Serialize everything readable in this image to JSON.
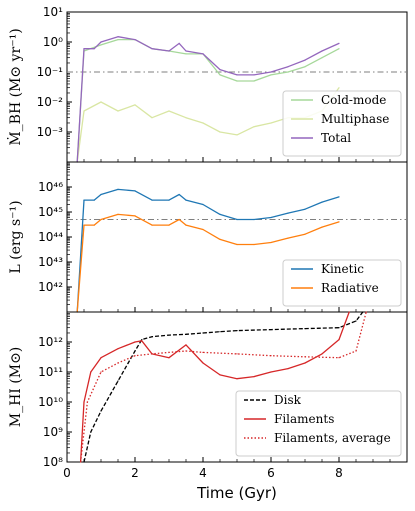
{
  "chart_data": [
    {
      "type": "line",
      "panel": "top",
      "ylabel": "Ṁ_BH (M⊙ yr⁻¹)",
      "yscale": "log",
      "ylim": [
        0.0001,
        10
      ],
      "xlim": [
        0,
        10
      ],
      "y_tick_labels": [
        "10⁻³",
        "10⁻²",
        "10⁻¹",
        "10⁰",
        "10¹"
      ],
      "legend_position": "lower-right",
      "reference_line": {
        "y": 0.1,
        "style": "dash-dot",
        "color": "#7f7f7f"
      },
      "series": [
        {
          "name": "Cold-mode",
          "color": "#a6d89a",
          "x": [
            0.3,
            0.5,
            1,
            1.5,
            2,
            2.5,
            3,
            3.5,
            4,
            4.5,
            5,
            5.5,
            6,
            6.5,
            7,
            7.5,
            8
          ],
          "y": [
            0.0001,
            0.5,
            0.8,
            1.2,
            1.2,
            0.6,
            0.5,
            0.4,
            0.4,
            0.08,
            0.05,
            0.05,
            0.08,
            0.1,
            0.15,
            0.3,
            0.6
          ]
        },
        {
          "name": "Multiphase",
          "color": "#d9e6a3",
          "x": [
            0.3,
            0.5,
            1,
            1.5,
            2,
            2.5,
            3,
            3.5,
            4,
            4.5,
            5,
            5.5,
            6,
            6.5,
            7,
            7.5,
            8
          ],
          "y": [
            0.0001,
            0.005,
            0.01,
            0.005,
            0.008,
            0.003,
            0.005,
            0.003,
            0.002,
            0.001,
            0.0008,
            0.0015,
            0.002,
            0.003,
            0.003,
            0.005,
            0.03
          ]
        },
        {
          "name": "Total",
          "color": "#9467bd",
          "x": [
            0.3,
            0.5,
            0.8,
            1,
            1.5,
            2,
            2.5,
            3,
            3.3,
            3.5,
            4,
            4.5,
            5,
            5.5,
            6,
            6.5,
            7,
            7.5,
            8
          ],
          "y": [
            0.0001,
            0.6,
            0.6,
            1.0,
            1.5,
            1.2,
            0.6,
            0.5,
            0.9,
            0.5,
            0.4,
            0.12,
            0.08,
            0.08,
            0.1,
            0.15,
            0.25,
            0.5,
            0.9
          ]
        }
      ]
    },
    {
      "type": "line",
      "panel": "middle",
      "ylabel": "L (erg s⁻¹)",
      "yscale": "log",
      "ylim": [
        1e+41,
        1e+47
      ],
      "xlim": [
        0,
        10
      ],
      "y_tick_labels": [
        "10⁴²",
        "10⁴³",
        "10⁴⁴",
        "10⁴⁵",
        "10⁴⁶"
      ],
      "legend_position": "lower-right",
      "reference_line": {
        "y": 5e+44,
        "style": "dash-dot",
        "color": "#7f7f7f"
      },
      "series": [
        {
          "name": "Kinetic",
          "color": "#1f77b4",
          "x": [
            0.3,
            0.5,
            0.8,
            1,
            1.5,
            2,
            2.5,
            3,
            3.3,
            3.5,
            4,
            4.5,
            5,
            5.5,
            6,
            6.5,
            7,
            7.5,
            8
          ],
          "y": [
            1e+41,
            3e+45,
            3e+45,
            5e+45,
            8e+45,
            7e+45,
            3e+45,
            3e+45,
            5e+45,
            3e+45,
            2e+45,
            8e+44,
            5e+44,
            5e+44,
            6e+44,
            9e+44,
            1.3e+45,
            2.5e+45,
            4e+45
          ]
        },
        {
          "name": "Radiative",
          "color": "#ff7f0e",
          "x": [
            0.3,
            0.5,
            0.8,
            1,
            1.5,
            2,
            2.5,
            3,
            3.3,
            3.5,
            4,
            4.5,
            5,
            5.5,
            6,
            6.5,
            7,
            7.5,
            8
          ],
          "y": [
            1e+41,
            3e+44,
            3e+44,
            5e+44,
            8e+44,
            7e+44,
            3e+44,
            3e+44,
            5e+44,
            3e+44,
            2e+44,
            8e+43,
            5e+43,
            5e+43,
            6e+43,
            9e+43,
            1.3e+44,
            2.5e+44,
            4e+44
          ]
        }
      ]
    },
    {
      "type": "line",
      "panel": "bottom",
      "ylabel": "M_HI (M⊙)",
      "xlabel": "Time (Gyr)",
      "yscale": "log",
      "ylim": [
        100000000.0,
        10000000000000.0
      ],
      "xlim": [
        0,
        10
      ],
      "x_tick_labels": [
        "0",
        "2",
        "4",
        "6",
        "8"
      ],
      "y_tick_labels": [
        "10⁸",
        "10⁹",
        "10¹⁰",
        "10¹¹",
        "10¹²"
      ],
      "legend_position": "lower-right",
      "series": [
        {
          "name": "Disk",
          "color": "#000000",
          "style": "dashed",
          "x": [
            0.5,
            0.7,
            1,
            1.3,
            1.5,
            1.8,
            2,
            2.2,
            2.5,
            3,
            3.5,
            4,
            4.5,
            5,
            6,
            7,
            8,
            8.5,
            8.7
          ],
          "y": [
            100000000.0,
            1000000000.0,
            5000000000.0,
            20000000000.0,
            50000000000.0,
            200000000000.0,
            500000000000.0,
            1200000000000.0,
            1500000000000.0,
            1700000000000.0,
            1800000000000.0,
            2000000000000.0,
            2200000000000.0,
            2400000000000.0,
            2600000000000.0,
            2800000000000.0,
            3000000000000.0,
            5000000000000.0,
            10000000000000.0
          ]
        },
        {
          "name": "Filaments",
          "color": "#d62728",
          "style": "solid",
          "x": [
            0.4,
            0.5,
            0.7,
            1,
            1.5,
            2,
            2.2,
            2.5,
            3,
            3.5,
            4,
            4.5,
            5,
            5.5,
            6,
            6.5,
            7,
            7.5,
            8,
            8.3
          ],
          "y": [
            100000000.0,
            10000000000.0,
            100000000000.0,
            300000000000.0,
            600000000000.0,
            1000000000000.0,
            1100000000000.0,
            400000000000.0,
            300000000000.0,
            800000000000.0,
            200000000000.0,
            80000000000.0,
            60000000000.0,
            70000000000.0,
            100000000000.0,
            130000000000.0,
            200000000000.0,
            400000000000.0,
            1200000000000.0,
            10000000000000.0
          ]
        },
        {
          "name": "Filaments, average",
          "color": "#d62728",
          "style": "dotted",
          "x": [
            0.4,
            0.6,
            1,
            1.5,
            2,
            2.5,
            3,
            3.5,
            4,
            5,
            6,
            7,
            8,
            8.5,
            8.8
          ],
          "y": [
            100000000.0,
            10000000000.0,
            100000000000.0,
            200000000000.0,
            350000000000.0,
            400000000000.0,
            450000000000.0,
            500000000000.0,
            450000000000.0,
            400000000000.0,
            350000000000.0,
            320000000000.0,
            300000000000.0,
            500000000000.0,
            10000000000000.0
          ]
        }
      ]
    }
  ]
}
